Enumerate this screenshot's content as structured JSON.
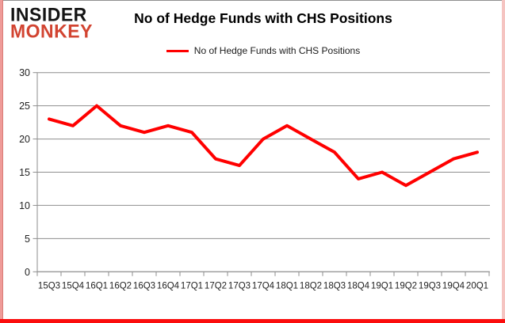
{
  "logo": {
    "line1": "INSIDER",
    "line2": "MONKEY"
  },
  "title": "No of Hedge Funds with CHS Positions",
  "legend": {
    "label": "No of Hedge Funds with CHS Positions"
  },
  "colors": {
    "line": "#ff0000",
    "grid": "#8e8e8e",
    "axis": "#8e8e8e",
    "tick_label": "#222222",
    "logo_black": "#141414",
    "logo_red": "#d24431",
    "frame_red": "#fb0d0d",
    "frame_pink": "#f5c4c1"
  },
  "chart_data": {
    "type": "line",
    "title": "No of Hedge Funds with CHS Positions",
    "xlabel": "",
    "ylabel": "",
    "categories": [
      "15Q3",
      "15Q4",
      "16Q1",
      "16Q2",
      "16Q3",
      "16Q4",
      "17Q1",
      "17Q2",
      "17Q3",
      "17Q4",
      "18Q1",
      "18Q2",
      "18Q3",
      "18Q4",
      "19Q1",
      "19Q2",
      "19Q3",
      "19Q4",
      "20Q1"
    ],
    "series": [
      {
        "name": "No of Hedge Funds with CHS Positions",
        "color": "#ff0000",
        "values": [
          23,
          22,
          25,
          22,
          21,
          22,
          21,
          17,
          16,
          20,
          22,
          20,
          18,
          14,
          15,
          13,
          15,
          17,
          18
        ]
      }
    ],
    "ylim": [
      0,
      30
    ],
    "yticks": [
      0,
      5,
      10,
      15,
      20,
      25,
      30
    ],
    "grid": true,
    "legend_position": "top"
  }
}
